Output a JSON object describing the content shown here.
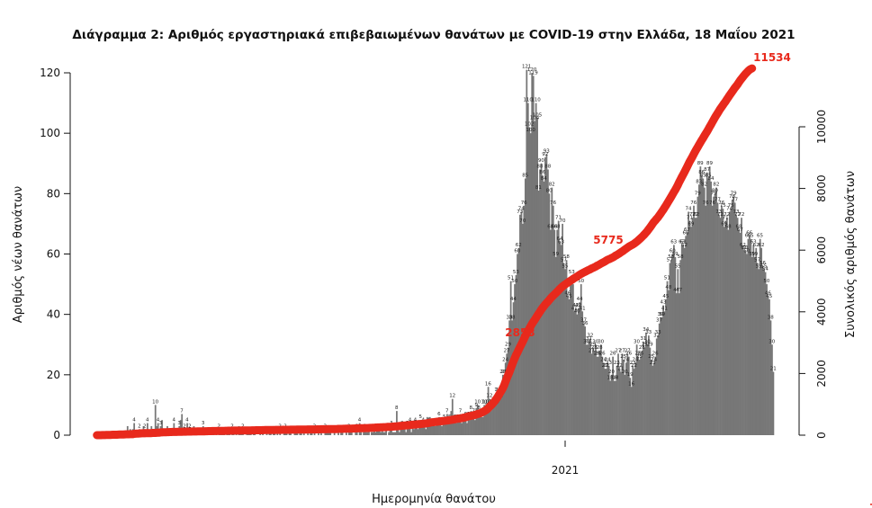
{
  "chart_data": {
    "type": "bar",
    "title": "Διάγραμμα 2: Αριθμός εργαστηριακά επιβεβαιωμένων θανάτων με COVID-19 στην Ελλάδα, 18 Μαΐου 2021",
    "xlabel": "Ημερομηνία θανάτου",
    "ylabel": "Αριθμός νέων θανάτων",
    "y2label": "Συνολικός αριθμός θανάτων",
    "ylim": [
      0,
      125
    ],
    "y_ticks": [
      "0",
      "20",
      "40",
      "60",
      "80",
      "100",
      "120"
    ],
    "y2lim": [
      0,
      11000
    ],
    "y2_ticks": [
      "0",
      "2000",
      "4000",
      "6000",
      "8000",
      "10000"
    ],
    "x_ticks": [
      "2021"
    ],
    "grid": false,
    "bar_color": "#777777",
    "line_color": "#e8291c",
    "series": [
      {
        "type": "bar",
        "values": [
          0,
          0,
          0,
          0,
          0,
          0,
          0,
          0,
          0,
          0,
          0,
          0,
          0,
          0,
          1,
          0,
          1,
          0,
          0,
          1,
          1,
          0,
          0,
          3,
          0,
          2,
          1,
          2,
          4,
          1,
          0,
          0,
          2,
          1,
          0,
          3,
          2,
          1,
          4,
          1,
          0,
          3,
          0,
          0,
          10,
          3,
          4,
          1,
          3,
          5,
          1,
          0,
          1,
          3,
          1,
          2,
          0,
          1,
          4,
          1,
          0,
          2,
          3,
          5,
          7,
          1,
          2,
          0,
          4,
          1,
          2,
          1,
          0,
          3,
          0,
          1,
          1,
          2,
          0,
          1,
          3,
          2,
          1,
          0,
          1,
          0,
          0,
          2,
          1,
          0,
          1,
          0,
          2,
          1,
          1,
          1,
          1,
          0,
          1,
          2,
          1,
          0,
          2,
          1,
          0,
          1,
          0,
          3,
          1,
          1,
          2,
          0,
          0,
          1,
          1,
          2,
          1,
          0,
          1,
          1,
          0,
          0,
          0,
          1,
          0,
          2,
          0,
          0,
          1,
          0,
          1,
          1,
          0,
          3,
          1,
          0,
          1,
          0,
          2,
          0,
          0,
          1,
          2,
          1,
          0,
          1,
          1,
          0,
          0,
          1,
          1,
          2,
          0,
          1,
          1,
          0,
          1,
          0,
          0,
          1,
          0,
          1,
          1,
          0,
          2,
          0,
          0,
          1,
          0,
          1,
          0,
          0,
          2,
          1,
          1,
          1,
          1,
          0,
          0,
          1,
          0,
          0,
          1,
          0,
          1,
          1,
          0,
          0,
          1,
          0,
          2,
          1,
          1,
          0,
          0,
          1,
          2,
          0,
          4,
          1,
          0,
          1,
          2,
          1,
          1,
          2,
          0,
          1,
          1,
          2,
          1,
          3,
          2,
          2,
          1,
          2,
          1,
          1,
          2,
          0,
          1,
          2,
          3,
          1,
          1,
          1,
          8,
          2,
          1,
          2,
          3,
          2,
          2,
          1,
          3,
          4,
          4,
          1,
          3,
          2,
          4,
          3,
          2,
          5,
          5,
          5,
          4,
          4,
          2,
          6,
          4,
          6,
          3,
          4,
          3,
          3,
          4,
          5,
          6,
          4,
          3,
          4,
          5,
          5,
          7,
          6,
          5,
          8,
          12,
          5,
          5,
          4,
          5,
          5,
          7,
          4,
          5,
          5,
          6,
          4,
          6,
          5,
          8,
          6,
          7,
          5,
          9,
          10,
          8,
          7,
          6,
          6,
          10,
          10,
          9,
          16,
          12,
          8,
          10,
          10,
          10,
          10,
          14,
          14,
          12,
          14,
          20,
          20,
          24,
          27,
          29,
          38,
          51,
          38,
          44,
          50,
          53,
          60,
          62,
          73,
          74,
          70,
          76,
          85,
          121,
          110,
          102,
          100,
          120,
          119,
          104,
          110,
          105,
          81,
          88,
          90,
          86,
          84,
          92,
          93,
          88,
          80,
          68,
          82,
          76,
          68,
          59,
          68,
          71,
          64,
          63,
          70,
          57,
          55,
          58,
          46,
          45,
          50,
          53,
          50,
          41,
          42,
          40,
          42,
          44,
          50,
          41,
          37,
          36,
          30,
          30,
          31,
          32,
          27,
          29,
          28,
          30,
          26,
          26,
          28,
          30,
          26,
          24,
          22,
          22,
          24,
          23,
          18,
          20,
          26,
          18,
          18,
          23,
          27,
          22,
          21,
          27,
          25,
          20,
          24,
          27,
          26,
          19,
          16,
          23,
          22,
          24,
          30,
          26,
          25,
          26,
          28,
          31,
          29,
          34,
          30,
          33,
          29,
          25,
          23,
          24,
          26,
          32,
          33,
          37,
          39,
          39,
          43,
          41,
          45,
          51,
          48,
          57,
          58,
          60,
          63,
          59,
          47,
          55,
          47,
          58,
          63,
          63,
          62,
          66,
          67,
          74,
          71,
          69,
          72,
          76,
          72,
          72,
          79,
          83,
          89,
          86,
          85,
          82,
          76,
          87,
          85,
          89,
          84,
          76,
          79,
          80,
          82,
          77,
          73,
          72,
          76,
          75,
          69,
          71,
          72,
          68,
          74,
          75,
          78,
          79,
          77,
          73,
          72,
          68,
          67,
          72,
          62,
          61,
          61,
          60,
          65,
          66,
          65,
          59,
          63,
          59,
          62,
          57,
          55,
          65,
          62,
          56,
          55,
          54,
          50,
          46,
          45,
          38,
          30,
          21
        ]
      },
      {
        "type": "line",
        "name": "cumulative",
        "values": [
          0,
          1,
          1,
          1,
          2,
          3,
          3,
          6,
          6,
          8,
          9,
          11,
          15,
          16,
          16,
          16,
          18,
          19,
          19,
          22,
          24,
          25,
          29,
          30,
          30,
          33,
          33,
          33,
          43,
          46,
          50,
          51,
          54,
          59,
          60,
          60,
          61,
          64,
          65,
          67,
          67,
          68,
          72,
          73,
          73,
          75,
          78,
          83,
          90,
          91,
          93,
          93,
          97,
          98,
          100,
          101,
          101,
          104,
          104,
          105,
          106,
          108,
          108,
          109,
          112,
          114,
          115,
          115,
          116,
          116,
          116,
          118,
          119,
          119,
          120,
          120,
          122,
          123,
          124,
          125,
          126,
          126,
          127,
          129,
          130,
          130,
          132,
          133,
          133,
          134,
          134,
          137,
          138,
          139,
          141,
          141,
          141,
          142,
          143,
          145,
          146,
          146,
          147,
          148,
          148,
          148,
          148,
          149,
          149,
          151,
          151,
          151,
          152,
          152,
          153,
          154,
          154,
          157,
          158,
          158,
          159,
          159,
          161,
          161,
          161,
          162,
          164,
          165,
          165,
          166,
          167,
          167,
          167,
          168,
          169,
          171,
          171,
          172,
          173,
          173,
          174,
          174,
          174,
          175,
          175,
          176,
          177,
          177,
          179,
          179,
          179,
          180,
          180,
          181,
          181,
          181,
          183,
          184,
          185,
          186,
          187,
          187,
          187,
          188,
          188,
          188,
          189,
          189,
          190,
          191,
          191,
          191,
          192,
          192,
          194,
          195,
          196,
          196,
          196,
          197,
          199,
          199,
          203,
          204,
          204,
          205,
          207,
          208,
          209,
          211,
          211,
          212,
          213,
          215,
          216,
          219,
          221,
          223,
          224,
          226,
          227,
          228,
          230,
          230,
          231,
          233,
          236,
          237,
          238,
          239,
          247,
          249,
          250,
          252,
          255,
          257,
          259,
          260,
          263,
          267,
          271,
          272,
          275,
          277,
          281,
          284,
          286,
          291,
          296,
          301,
          305,
          309,
          311,
          317,
          321,
          327,
          330,
          334,
          337,
          340,
          344,
          349,
          355,
          359,
          362,
          366,
          371,
          376,
          383,
          389,
          394,
          402,
          414,
          419,
          424,
          428,
          433,
          438,
          445,
          449,
          454,
          459,
          465,
          469,
          475,
          480,
          488,
          494,
          501,
          506,
          515,
          525,
          533,
          540,
          546,
          552,
          562,
          572,
          581,
          597,
          609,
          617,
          627,
          637,
          647,
          657,
          671,
          685,
          697,
          711,
          731,
          751,
          775,
          802,
          831,
          869,
          920,
          958,
          1002,
          1052,
          1105,
          1165,
          1227,
          1300,
          1374,
          1444,
          1520,
          1605,
          1726,
          1836,
          1938,
          2038,
          2158,
          2277,
          2381,
          2491,
          2596,
          2677,
          2765,
          2855,
          2941,
          3025,
          3117,
          3210,
          3298,
          3378,
          3446,
          3528,
          3604,
          3672,
          3731,
          3799,
          3870,
          3934,
          3997,
          4067,
          4124,
          4179,
          4237,
          4283,
          4328,
          4378,
          4431,
          4481,
          4522,
          4564,
          4604,
          4646,
          4690,
          4740,
          4781,
          4818,
          4854,
          4884,
          4914,
          4945,
          4977,
          5004,
          5033,
          5061,
          5091,
          5117,
          5143,
          5171,
          5201,
          5227,
          5251,
          5273,
          5295,
          5319,
          5342,
          5360,
          5380,
          5406,
          5424,
          5442,
          5465,
          5492,
          5514,
          5535,
          5562,
          5587,
          5607,
          5631,
          5658,
          5684,
          5703,
          5719,
          5742,
          5764,
          5788,
          5818,
          5844,
          5869,
          5895,
          5923,
          5954,
          5983,
          6017,
          6047,
          6080,
          6109,
          6134,
          6157,
          6181,
          6207,
          6239,
          6272,
          6309,
          6348,
          6387,
          6430,
          6471,
          6516,
          6567,
          6615,
          6672,
          6730,
          6790,
          6853,
          6912,
          6959,
          7014,
          7061,
          7119,
          7182,
          7245,
          7307,
          7373,
          7440,
          7514,
          7585,
          7654,
          7726,
          7802,
          7874,
          7946,
          8025,
          8108,
          8197,
          8283,
          8368,
          8450,
          8526,
          8613,
          8698,
          8787,
          8871,
          8947,
          9026,
          9106,
          9188,
          9265,
          9338,
          9410,
          9486,
          9561,
          9630,
          9701,
          9773,
          9841,
          9915,
          9990,
          10068,
          10147,
          10224,
          10297,
          10369,
          10437,
          10504,
          10576,
          10638,
          10699,
          10760,
          10820,
          10885,
          10951,
          11016,
          11075,
          11138,
          11197,
          11259,
          11316,
          11371,
          11436,
          11498,
          11554,
          11609,
          11663,
          11713,
          11759,
          11804,
          11842,
          11872,
          11893
        ]
      }
    ],
    "annotations": [
      "2853",
      "5775",
      "11534"
    ]
  }
}
